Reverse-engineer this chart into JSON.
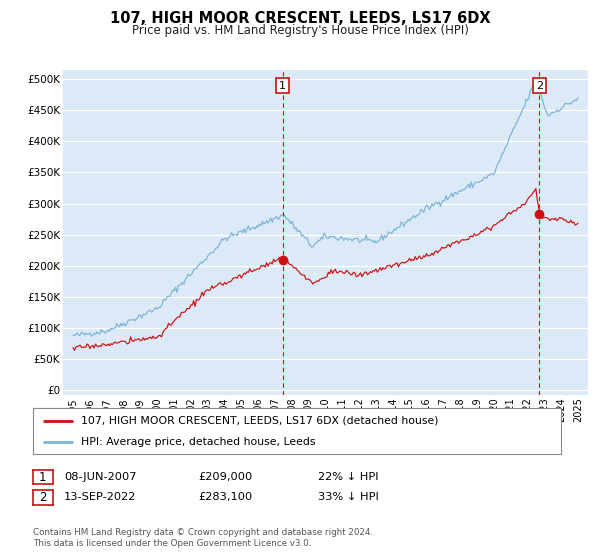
{
  "title": "107, HIGH MOOR CRESCENT, LEEDS, LS17 6DX",
  "subtitle": "Price paid vs. HM Land Registry's House Price Index (HPI)",
  "yticks": [
    0,
    50000,
    100000,
    150000,
    200000,
    250000,
    300000,
    350000,
    400000,
    450000,
    500000
  ],
  "ylim": [
    -8000,
    515000
  ],
  "bg_color": "#dbeaf6",
  "grid_color": "#c8d8e8",
  "hpi_color": "#7ab3d4",
  "price_color": "#cc1111",
  "sale1": {
    "date": "08-JUN-2007",
    "price": "£209,000",
    "pct": "22% ↓ HPI",
    "year": 2007.46
  },
  "sale2": {
    "date": "13-SEP-2022",
    "price": "£283,100",
    "pct": "33% ↓ HPI",
    "year": 2022.71
  },
  "footnote": "Contains HM Land Registry data © Crown copyright and database right 2024.\nThis data is licensed under the Open Government Licence v3.0.",
  "legend_label1": "107, HIGH MOOR CRESCENT, LEEDS, LS17 6DX (detached house)",
  "legend_label2": "HPI: Average price, detached house, Leeds"
}
